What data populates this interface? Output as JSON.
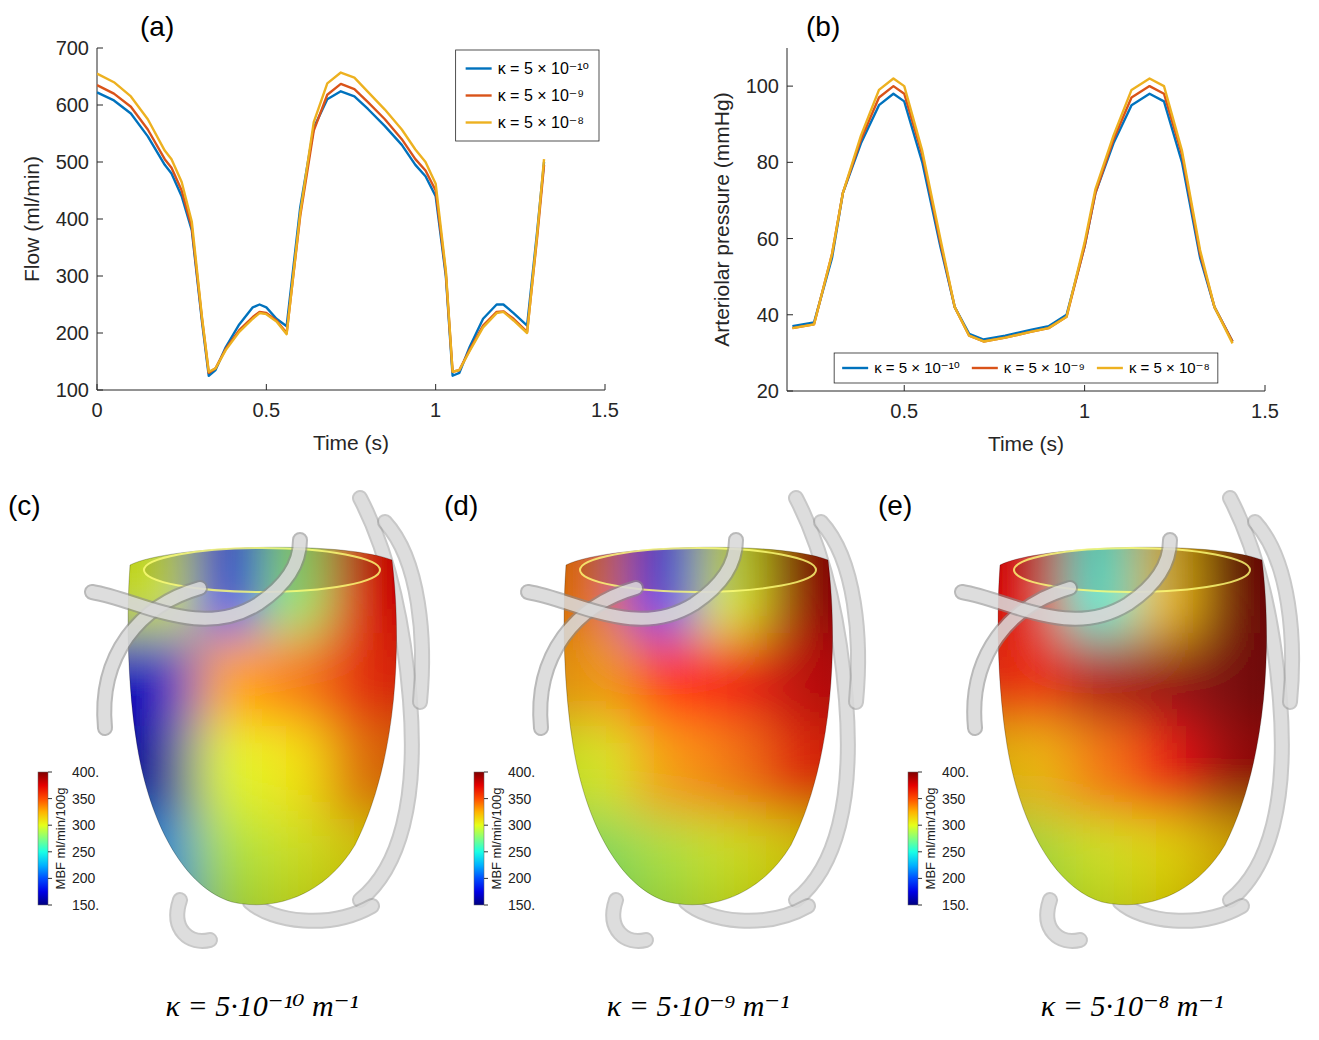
{
  "panel_labels": [
    "(a)",
    "(b)",
    "(c)",
    "(d)",
    "(e)"
  ],
  "chart_data": [
    {
      "type": "line",
      "xlabel": "Time (s)",
      "ylabel": "Flow (ml/min)",
      "x": [
        0,
        0.05,
        0.1,
        0.15,
        0.2,
        0.22,
        0.25,
        0.28,
        0.31,
        0.33,
        0.35,
        0.38,
        0.42,
        0.46,
        0.48,
        0.5,
        0.53,
        0.56,
        0.6,
        0.64,
        0.68,
        0.72,
        0.76,
        0.8,
        0.85,
        0.9,
        0.94,
        0.97,
        1.0,
        1.03,
        1.05,
        1.07,
        1.1,
        1.14,
        1.18,
        1.2,
        1.23,
        1.27,
        1.3,
        1.32
      ],
      "xlim": [
        0,
        1.5
      ],
      "xticks": [
        0,
        0.5,
        1,
        1.5
      ],
      "ylim": [
        100,
        700
      ],
      "yticks": [
        100,
        200,
        300,
        400,
        500,
        600,
        700
      ],
      "grid": false,
      "legend": "top-right",
      "series": [
        {
          "name": "κ = 5 × 10⁻¹⁰",
          "color": "#0072bd",
          "values": [
            622,
            608,
            585,
            545,
            495,
            480,
            440,
            380,
            220,
            125,
            135,
            175,
            215,
            245,
            250,
            245,
            225,
            212,
            420,
            560,
            610,
            624,
            615,
            593,
            563,
            530,
            495,
            475,
            440,
            300,
            125,
            130,
            175,
            225,
            250,
            250,
            235,
            213,
            380,
            500
          ]
        },
        {
          "name": "κ = 5 × 10⁻⁹",
          "color": "#d95319",
          "values": [
            635,
            620,
            597,
            557,
            505,
            490,
            450,
            385,
            225,
            130,
            138,
            172,
            205,
            228,
            237,
            235,
            222,
            200,
            405,
            555,
            618,
            637,
            628,
            605,
            575,
            540,
            505,
            485,
            450,
            305,
            132,
            135,
            170,
            213,
            237,
            238,
            225,
            202,
            370,
            495
          ]
        },
        {
          "name": "κ = 5 × 10⁻⁸",
          "color": "#edb120",
          "values": [
            655,
            640,
            615,
            575,
            520,
            505,
            465,
            395,
            228,
            132,
            138,
            170,
            202,
            225,
            235,
            233,
            220,
            198,
            410,
            570,
            638,
            657,
            648,
            623,
            592,
            557,
            522,
            500,
            462,
            310,
            132,
            135,
            168,
            210,
            235,
            237,
            222,
            200,
            375,
            505
          ]
        }
      ]
    },
    {
      "type": "line",
      "xlabel": "Time (s)",
      "ylabel": "Arteriolar pressure (mmHg)",
      "x": [
        0.19,
        0.25,
        0.3,
        0.33,
        0.38,
        0.43,
        0.47,
        0.5,
        0.55,
        0.6,
        0.64,
        0.68,
        0.72,
        0.78,
        0.85,
        0.9,
        0.95,
        1.0,
        1.03,
        1.08,
        1.13,
        1.18,
        1.22,
        1.27,
        1.32,
        1.36,
        1.41
      ],
      "xlim": [
        0.175,
        1.5
      ],
      "xticks": [
        0.5,
        1,
        1.5
      ],
      "ylim": [
        20,
        110
      ],
      "yticks": [
        20,
        40,
        60,
        80,
        100
      ],
      "grid": false,
      "legend": "bottom",
      "series": [
        {
          "name": "κ = 5 × 10⁻¹⁰",
          "color": "#0072bd",
          "values": [
            37,
            38,
            55,
            72,
            85,
            95,
            98,
            96,
            80,
            58,
            42,
            35,
            33.5,
            34.5,
            36,
            37,
            40,
            58,
            72,
            85,
            95,
            98,
            96,
            80,
            55,
            42,
            33
          ]
        },
        {
          "name": "κ = 5 × 10⁻⁹",
          "color": "#d95319",
          "values": [
            36.5,
            37.5,
            56,
            72,
            86,
            97,
            100,
            98,
            82,
            59,
            42,
            34.5,
            33,
            34,
            35.5,
            36.5,
            39.5,
            58,
            72,
            86,
            97,
            100,
            98,
            82,
            56,
            42,
            33
          ]
        },
        {
          "name": "κ = 5 × 10⁻⁸",
          "color": "#edb120",
          "values": [
            36.5,
            37.5,
            56,
            72,
            87,
            99,
            102,
            100,
            83,
            60,
            42,
            34.5,
            33,
            34,
            35.5,
            36.5,
            39.5,
            59,
            73,
            87,
            99,
            102,
            100,
            83,
            57,
            42,
            32.5
          ]
        }
      ]
    }
  ],
  "maps": [
    {
      "caption": "κ = 5·10⁻¹⁰ m⁻¹",
      "colorbar": {
        "title": "MBF ml/min/100g",
        "range": [
          150,
          400
        ],
        "ticks": [
          {
            "value": 150,
            "label": "150."
          },
          200,
          250,
          300,
          350,
          {
            "value": 400,
            "label": "400."
          }
        ]
      },
      "cells": [
        [
          300,
          180,
          280,
          370
        ],
        [
          170,
          330,
          340,
          360
        ],
        [
          160,
          300,
          310,
          340
        ],
        [
          220,
          290,
          300,
          310
        ]
      ]
    },
    {
      "caption": "κ = 5·10⁻⁹ m⁻¹",
      "colorbar": {
        "title": "MBF ml/min/100g",
        "range": [
          150,
          400
        ],
        "ticks": [
          {
            "value": 150,
            "label": "150."
          },
          200,
          250,
          300,
          350,
          {
            "value": 400,
            "label": "400."
          }
        ]
      },
      "cells": [
        [
          340,
          190,
          300,
          390
        ],
        [
          330,
          360,
          370,
          380
        ],
        [
          300,
          330,
          340,
          360
        ],
        [
          280,
          290,
          300,
          310
        ]
      ]
    },
    {
      "caption": "κ = 5·10⁻⁸ m⁻¹",
      "colorbar": {
        "title": "MBF ml/min/100g",
        "range": [
          150,
          400
        ],
        "ticks": [
          {
            "value": 150,
            "label": "150."
          },
          200,
          250,
          300,
          350,
          {
            "value": 400,
            "label": "400."
          }
        ]
      },
      "cells": [
        [
          370,
          250,
          320,
          400
        ],
        [
          360,
          390,
          395,
          400
        ],
        [
          320,
          340,
          370,
          390
        ],
        [
          290,
          300,
          310,
          320
        ]
      ]
    }
  ]
}
